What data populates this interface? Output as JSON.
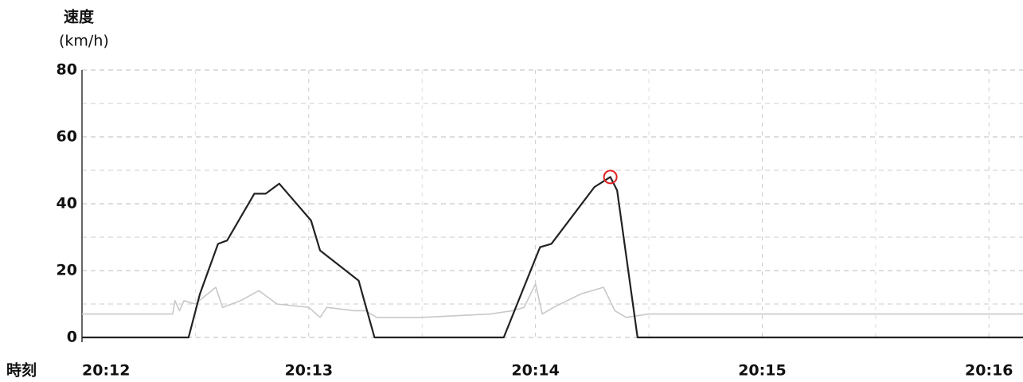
{
  "chart_data": {
    "type": "line",
    "y_label_line1": "速度",
    "y_label_line2": "(km/h)",
    "x_label": "時刻",
    "xlim": [
      1212,
      1216.15
    ],
    "ylim": [
      0,
      80
    ],
    "xticks": [
      {
        "value": 1212,
        "label": "20:12"
      },
      {
        "value": 1213,
        "label": "20:13"
      },
      {
        "value": 1214,
        "label": "20:14"
      },
      {
        "value": 1215,
        "label": "20:15"
      },
      {
        "value": 1216,
        "label": "20:16"
      }
    ],
    "xminorticks": [
      1212.5,
      1213.5,
      1214.5,
      1215.5
    ],
    "yticks": [
      0,
      20,
      40,
      60,
      80
    ],
    "yminorticks": [
      10,
      30,
      50,
      70
    ],
    "grid": true,
    "series": [
      {
        "color": "#c8c8c8",
        "x": [
          1212,
          1212.4,
          1212.41,
          1212.43,
          1212.45,
          1212.5,
          1212.59,
          1212.62,
          1212.7,
          1212.78,
          1212.86,
          1213.0,
          1213.05,
          1213.08,
          1213.2,
          1213.25,
          1213.3,
          1213.5,
          1213.8,
          1213.9,
          1213.95,
          1214.0,
          1214.03,
          1214.08,
          1214.2,
          1214.3,
          1214.35,
          1214.4,
          1214.5,
          1215.5,
          1216.15
        ],
        "values": [
          7,
          7,
          11,
          8,
          11,
          10,
          15,
          9,
          11,
          14,
          10,
          9,
          6,
          9,
          8,
          8,
          6,
          6,
          7,
          8,
          9,
          16,
          7,
          9,
          13,
          15,
          8,
          6,
          7,
          7,
          7
        ]
      },
      {
        "color": "#222222",
        "x": [
          1212,
          1212.47,
          1212.52,
          1212.6,
          1212.64,
          1212.76,
          1212.81,
          1212.87,
          1213.01,
          1213.05,
          1213.22,
          1213.29,
          1213.86,
          1214.02,
          1214.07,
          1214.26,
          1214.33,
          1214.36,
          1214.45,
          1216.15
        ],
        "values": [
          0,
          0,
          13,
          28,
          29,
          43,
          43,
          46,
          35,
          26,
          17,
          0,
          0,
          27,
          28,
          45,
          48,
          44,
          0,
          0
        ]
      }
    ],
    "highlight": {
      "x": 1214.33,
      "y": 48,
      "color": "#e02020"
    }
  }
}
